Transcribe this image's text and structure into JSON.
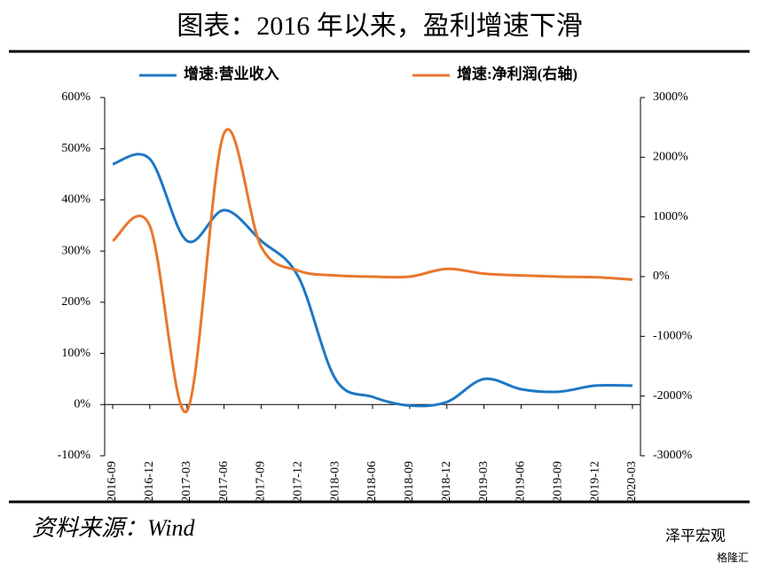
{
  "chart_data": {
    "type": "line",
    "title": "图表：2016 年以来，盈利增速下滑",
    "source": "资料来源：Wind",
    "watermark": "泽平宏观",
    "watermark2": "格隆汇",
    "categories": [
      "2016-09",
      "2016-12",
      "2017-03",
      "2017-06",
      "2017-09",
      "2017-12",
      "2018-03",
      "2018-06",
      "2018-09",
      "2018-12",
      "2019-03",
      "2019-06",
      "2019-09",
      "2019-12",
      "2020-03"
    ],
    "series": [
      {
        "name": "增速:营业收入",
        "color": "#1f77c4",
        "values": [
          470,
          480,
          320,
          380,
          320,
          250,
          50,
          15,
          -2,
          5,
          50,
          30,
          25,
          37,
          37
        ]
      },
      {
        "name": "增速:净利润(右轴)",
        "color": "#e8772e",
        "axis": "y2",
        "values": [
          600,
          850,
          -2250,
          2400,
          500,
          100,
          20,
          0,
          0,
          130,
          50,
          20,
          0,
          -10,
          -50
        ]
      }
    ],
    "ylim": [
      -100,
      600
    ],
    "yticks": [
      {
        "value": -100,
        "label": "-100%"
      },
      {
        "value": 0,
        "label": "0%"
      },
      {
        "value": 100,
        "label": "100%"
      },
      {
        "value": 200,
        "label": "200%"
      },
      {
        "value": 300,
        "label": "300%"
      },
      {
        "value": 400,
        "label": "400%"
      },
      {
        "value": 500,
        "label": "500%"
      },
      {
        "value": 600,
        "label": "600%"
      }
    ],
    "y2lim": [
      -3000,
      3000
    ],
    "y2ticks": [
      {
        "value": -3000,
        "label": "-3000%"
      },
      {
        "value": -2000,
        "label": "-2000%"
      },
      {
        "value": -1000,
        "label": "-1000%"
      },
      {
        "value": 0,
        "label": "0%"
      },
      {
        "value": 1000,
        "label": "1000%"
      },
      {
        "value": 2000,
        "label": "2000%"
      },
      {
        "value": 3000,
        "label": "3000%"
      }
    ],
    "grid": false
  }
}
